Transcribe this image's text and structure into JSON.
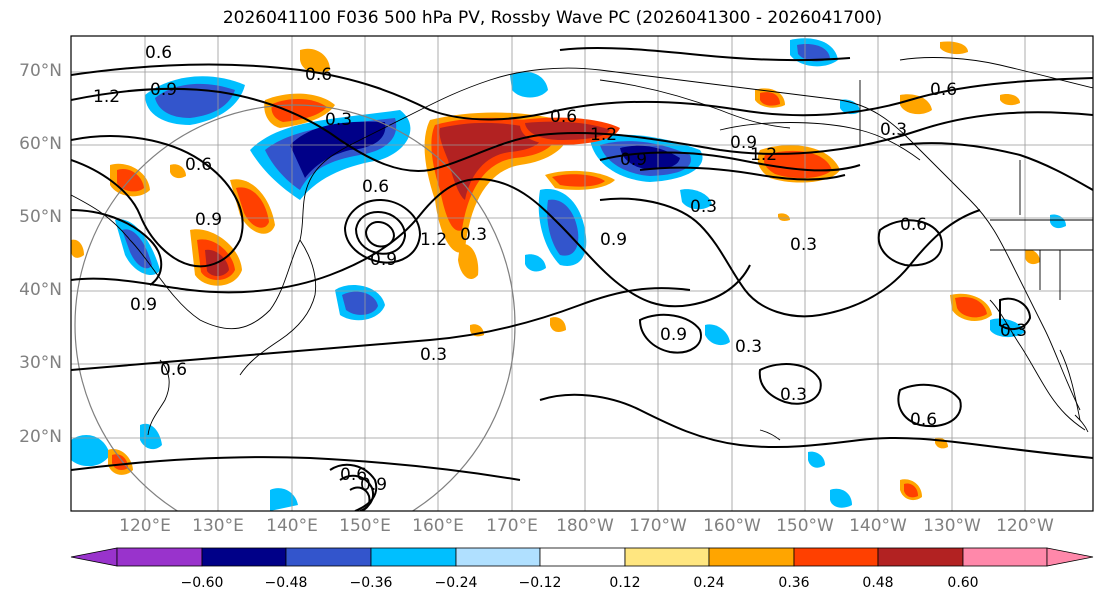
{
  "title": "2026041100 F036 500 hPa PV, Rossby Wave PC (2026041300 - 2026041700)",
  "lat_ticks": [
    "70°N",
    "60°N",
    "50°N",
    "40°N",
    "30°N",
    "20°N"
  ],
  "lon_ticks": [
    "120°E",
    "130°E",
    "140°E",
    "150°E",
    "160°E",
    "170°E",
    "180°W",
    "170°W",
    "160°W",
    "150°W",
    "140°W",
    "130°W",
    "120°W"
  ],
  "contour_labels": [
    "0.6",
    "0.9",
    "1.2",
    "0.6",
    "0.3",
    "0.6",
    "0.6",
    "0.9",
    "0.9",
    "1.2",
    "0.3",
    "0.6",
    "0.9",
    "0.3",
    "0.3",
    "0.9",
    "0.3",
    "0.6",
    "0.3",
    "0.3",
    "0.6",
    "0.3",
    "0.9",
    "0.3",
    "0.6",
    "0.6",
    "0.9",
    "1.2",
    "0.9",
    "1.2",
    "0.6",
    "0.9"
  ],
  "colorbar": {
    "ticks": [
      "−0.60",
      "−0.48",
      "−0.36",
      "−0.24",
      "−0.12",
      "0.12",
      "0.24",
      "0.36",
      "0.48",
      "0.60"
    ],
    "colors": [
      "#9933cc",
      "#000088",
      "#3355cc",
      "#00bfff",
      "#b0e0ff",
      "#ffffff",
      "#ffe680",
      "#ffa500",
      "#ff4000",
      "#b22222",
      "#ff88aa"
    ]
  },
  "shading_colors": {
    "neg_strong": "#000088",
    "neg_mid": "#3355cc",
    "neg_weak": "#00bfff",
    "neg_faint": "#b0e0ff",
    "pos_faint": "#ffe680",
    "pos_weak": "#ffa500",
    "pos_mid": "#ff4000",
    "pos_strong": "#b22222"
  }
}
